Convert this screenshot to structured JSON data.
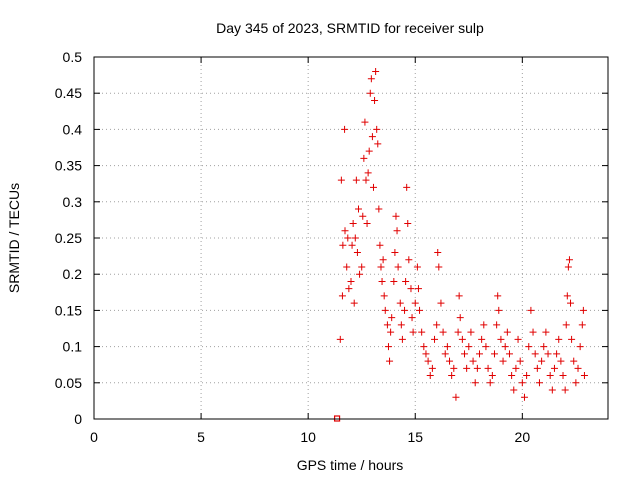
{
  "chart_data": {
    "type": "scatter",
    "title": "Day 345 of 2023, SRMTID for receiver sulp",
    "xlabel": "GPS time / hours",
    "ylabel": "SRMTID / TECUs",
    "xlim": [
      0,
      24
    ],
    "ylim": [
      0,
      0.5
    ],
    "x_ticks": [
      0,
      5,
      10,
      15,
      20
    ],
    "x_tick_labels": [
      "0",
      "5",
      "10",
      "15",
      "20"
    ],
    "y_ticks": [
      0,
      0.05,
      0.1,
      0.15,
      0.2,
      0.25,
      0.3,
      0.35,
      0.4,
      0.45,
      0.5
    ],
    "y_tick_labels": [
      "0",
      "0.05",
      "0.1",
      "0.15",
      "0.2",
      "0.25",
      "0.3",
      "0.35",
      "0.4",
      "0.45",
      "0.5"
    ],
    "grid": true,
    "marker": "+",
    "color": "#e00000",
    "zero_marker": {
      "x": 11.35,
      "y": 0.0
    },
    "series": [
      {
        "name": "SRMTID",
        "points": [
          [
            11.5,
            0.11
          ],
          [
            11.55,
            0.33
          ],
          [
            11.6,
            0.17
          ],
          [
            11.62,
            0.24
          ],
          [
            11.7,
            0.4
          ],
          [
            11.72,
            0.26
          ],
          [
            11.8,
            0.21
          ],
          [
            11.85,
            0.25
          ],
          [
            11.9,
            0.18
          ],
          [
            12.0,
            0.19
          ],
          [
            12.05,
            0.24
          ],
          [
            12.1,
            0.27
          ],
          [
            12.15,
            0.16
          ],
          [
            12.2,
            0.25
          ],
          [
            12.25,
            0.33
          ],
          [
            12.3,
            0.23
          ],
          [
            12.35,
            0.29
          ],
          [
            12.4,
            0.2
          ],
          [
            12.5,
            0.21
          ],
          [
            12.55,
            0.28
          ],
          [
            12.6,
            0.36
          ],
          [
            12.65,
            0.41
          ],
          [
            12.7,
            0.33
          ],
          [
            12.75,
            0.27
          ],
          [
            12.8,
            0.34
          ],
          [
            12.85,
            0.37
          ],
          [
            12.9,
            0.45
          ],
          [
            12.95,
            0.47
          ],
          [
            13.0,
            0.39
          ],
          [
            13.05,
            0.32
          ],
          [
            13.1,
            0.44
          ],
          [
            13.15,
            0.48
          ],
          [
            13.2,
            0.4
          ],
          [
            13.25,
            0.38
          ],
          [
            13.3,
            0.29
          ],
          [
            13.35,
            0.24
          ],
          [
            13.4,
            0.21
          ],
          [
            13.45,
            0.19
          ],
          [
            13.5,
            0.22
          ],
          [
            13.55,
            0.17
          ],
          [
            13.6,
            0.15
          ],
          [
            13.7,
            0.13
          ],
          [
            13.75,
            0.1
          ],
          [
            13.8,
            0.08
          ],
          [
            13.85,
            0.12
          ],
          [
            13.9,
            0.14
          ],
          [
            14.0,
            0.19
          ],
          [
            14.05,
            0.23
          ],
          [
            14.1,
            0.28
          ],
          [
            14.15,
            0.26
          ],
          [
            14.2,
            0.21
          ],
          [
            14.3,
            0.16
          ],
          [
            14.35,
            0.13
          ],
          [
            14.4,
            0.11
          ],
          [
            14.5,
            0.15
          ],
          [
            14.55,
            0.19
          ],
          [
            14.6,
            0.32
          ],
          [
            14.65,
            0.27
          ],
          [
            14.7,
            0.22
          ],
          [
            14.8,
            0.18
          ],
          [
            14.85,
            0.14
          ],
          [
            14.9,
            0.12
          ],
          [
            15.0,
            0.16
          ],
          [
            15.1,
            0.21
          ],
          [
            15.15,
            0.18
          ],
          [
            15.2,
            0.15
          ],
          [
            15.3,
            0.12
          ],
          [
            15.4,
            0.1
          ],
          [
            15.5,
            0.09
          ],
          [
            15.6,
            0.08
          ],
          [
            15.7,
            0.06
          ],
          [
            15.8,
            0.07
          ],
          [
            15.9,
            0.11
          ],
          [
            16.0,
            0.13
          ],
          [
            16.05,
            0.23
          ],
          [
            16.1,
            0.21
          ],
          [
            16.2,
            0.16
          ],
          [
            16.3,
            0.12
          ],
          [
            16.4,
            0.09
          ],
          [
            16.5,
            0.1
          ],
          [
            16.6,
            0.08
          ],
          [
            16.7,
            0.06
          ],
          [
            16.8,
            0.07
          ],
          [
            16.9,
            0.03
          ],
          [
            17.0,
            0.12
          ],
          [
            17.05,
            0.17
          ],
          [
            17.1,
            0.14
          ],
          [
            17.2,
            0.11
          ],
          [
            17.3,
            0.09
          ],
          [
            17.4,
            0.07
          ],
          [
            17.5,
            0.1
          ],
          [
            17.6,
            0.12
          ],
          [
            17.7,
            0.08
          ],
          [
            17.8,
            0.05
          ],
          [
            17.9,
            0.07
          ],
          [
            18.0,
            0.09
          ],
          [
            18.1,
            0.11
          ],
          [
            18.2,
            0.13
          ],
          [
            18.3,
            0.1
          ],
          [
            18.4,
            0.07
          ],
          [
            18.5,
            0.05
          ],
          [
            18.6,
            0.06
          ],
          [
            18.7,
            0.09
          ],
          [
            18.8,
            0.13
          ],
          [
            18.85,
            0.17
          ],
          [
            18.9,
            0.15
          ],
          [
            19.0,
            0.11
          ],
          [
            19.1,
            0.08
          ],
          [
            19.2,
            0.1
          ],
          [
            19.3,
            0.12
          ],
          [
            19.4,
            0.09
          ],
          [
            19.5,
            0.06
          ],
          [
            19.6,
            0.04
          ],
          [
            19.7,
            0.07
          ],
          [
            19.8,
            0.11
          ],
          [
            19.9,
            0.08
          ],
          [
            20.0,
            0.05
          ],
          [
            20.1,
            0.03
          ],
          [
            20.2,
            0.06
          ],
          [
            20.3,
            0.1
          ],
          [
            20.4,
            0.15
          ],
          [
            20.5,
            0.12
          ],
          [
            20.6,
            0.09
          ],
          [
            20.7,
            0.07
          ],
          [
            20.8,
            0.05
          ],
          [
            20.9,
            0.08
          ],
          [
            21.0,
            0.1
          ],
          [
            21.1,
            0.12
          ],
          [
            21.2,
            0.09
          ],
          [
            21.3,
            0.06
          ],
          [
            21.4,
            0.04
          ],
          [
            21.5,
            0.07
          ],
          [
            21.6,
            0.09
          ],
          [
            21.7,
            0.11
          ],
          [
            21.8,
            0.08
          ],
          [
            21.9,
            0.06
          ],
          [
            22.0,
            0.04
          ],
          [
            22.05,
            0.13
          ],
          [
            22.1,
            0.17
          ],
          [
            22.15,
            0.21
          ],
          [
            22.2,
            0.22
          ],
          [
            22.25,
            0.16
          ],
          [
            22.3,
            0.11
          ],
          [
            22.4,
            0.08
          ],
          [
            22.5,
            0.05
          ],
          [
            22.6,
            0.07
          ],
          [
            22.7,
            0.1
          ],
          [
            22.8,
            0.13
          ],
          [
            22.85,
            0.15
          ],
          [
            22.9,
            0.06
          ]
        ]
      }
    ]
  }
}
